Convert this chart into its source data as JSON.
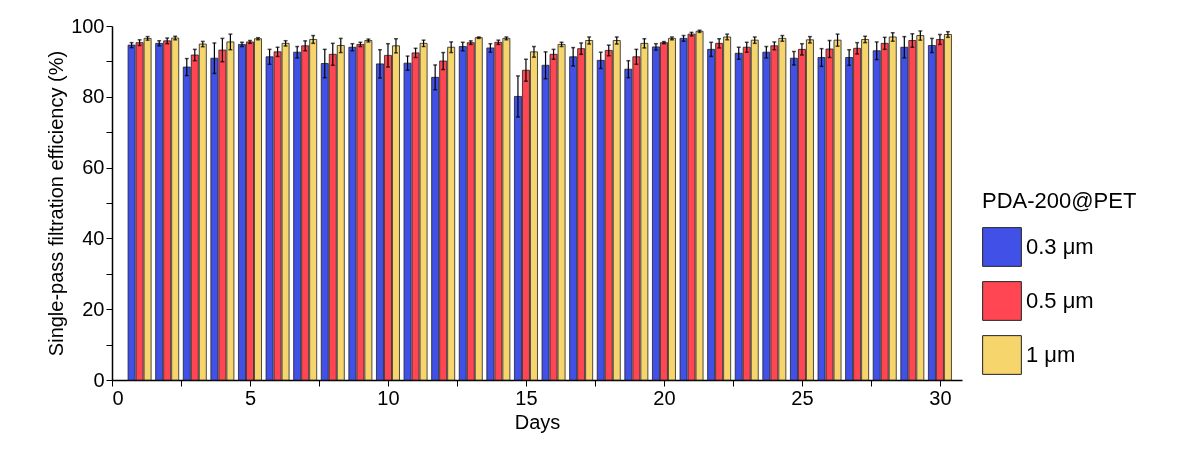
{
  "chart_data": {
    "type": "bar",
    "xlabel": "Days",
    "ylabel": "Single-pass filtration efficiency (%)",
    "legend_title": "PDA-200@PET",
    "legend": "right",
    "x": [
      1,
      2,
      3,
      4,
      5,
      6,
      7,
      8,
      9,
      10,
      11,
      12,
      13,
      14,
      15,
      16,
      17,
      18,
      19,
      20,
      21,
      22,
      23,
      24,
      25,
      26,
      27,
      28,
      29,
      30
    ],
    "xlim": [
      0,
      30.8
    ],
    "xticks": [
      0,
      {
        "value": 2.5,
        "label": null
      },
      5,
      {
        "value": 7.5,
        "label": null
      },
      10,
      {
        "value": 12.5,
        "label": null
      },
      15,
      {
        "value": 17.5,
        "label": null
      },
      20,
      {
        "value": 22.5,
        "label": null
      },
      25,
      {
        "value": 27.5,
        "label": null
      },
      30
    ],
    "ylim": [
      0,
      100
    ],
    "yticks": [
      0,
      {
        "value": 10,
        "label": null
      },
      20,
      {
        "value": 30,
        "label": null
      },
      40,
      {
        "value": 50,
        "label": null
      },
      60,
      {
        "value": 70,
        "label": null
      },
      80,
      {
        "value": 90,
        "label": null
      },
      100
    ],
    "series": [
      {
        "name": "0.3 μm",
        "color": "#4150e6",
        "values": [
          94.6,
          95.1,
          88.4,
          90.9,
          94.8,
          91.3,
          92.6,
          89.4,
          94.0,
          89.3,
          89.5,
          85.5,
          94.2,
          93.8,
          80.1,
          88.9,
          91.3,
          90.3,
          87.8,
          94.1,
          96.5,
          93.4,
          92.3,
          92.6,
          90.9,
          91.1,
          91.1,
          93.0,
          94.0,
          94.5
        ],
        "errors": [
          0.7,
          0.7,
          2.4,
          4.3,
          0.6,
          2.1,
          1.6,
          4.0,
          1.0,
          4.0,
          2.0,
          3.5,
          1.2,
          1.2,
          5.8,
          3.8,
          2.6,
          2.3,
          2.4,
          0.9,
          0.8,
          2.0,
          1.7,
          1.6,
          1.9,
          2.5,
          2.2,
          2.5,
          3.0,
          2.0
        ]
      },
      {
        "name": "0.5 μm",
        "color": "#ff4652",
        "values": [
          95.3,
          95.8,
          91.8,
          93.2,
          95.5,
          92.7,
          94.4,
          92.0,
          94.8,
          91.7,
          92.4,
          90.1,
          95.3,
          95.4,
          87.5,
          92.0,
          93.6,
          93.1,
          91.3,
          95.3,
          97.7,
          95.1,
          94.0,
          94.4,
          93.4,
          93.5,
          93.7,
          95.1,
          95.9,
          96.2
        ],
        "errors": [
          0.8,
          0.8,
          1.6,
          3.3,
          0.4,
          1.3,
          1.4,
          3.1,
          0.6,
          3.3,
          1.3,
          2.4,
          0.5,
          0.6,
          3.1,
          1.4,
          1.6,
          1.5,
          2.1,
          0.3,
          0.5,
          1.3,
          1.4,
          1.1,
          1.6,
          2.4,
          1.6,
          1.7,
          1.9,
          1.4
        ]
      },
      {
        "name": "1  μm",
        "color": "#f6d56c",
        "values": [
          96.5,
          96.6,
          94.9,
          95.5,
          96.4,
          95.1,
          96.2,
          94.5,
          95.9,
          94.4,
          95.1,
          94.0,
          96.7,
          96.5,
          92.7,
          94.8,
          95.9,
          95.9,
          95.1,
          96.5,
          98.5,
          96.9,
          96.0,
          96.5,
          96.1,
          96.0,
          96.2,
          96.9,
          97.3,
          97.6
        ],
        "errors": [
          0.5,
          0.5,
          0.75,
          2.2,
          0.3,
          0.75,
          1.1,
          2.0,
          0.4,
          2.0,
          0.9,
          1.5,
          0.2,
          0.4,
          1.5,
          0.6,
          1.0,
          1.0,
          1.3,
          0.4,
          0.3,
          0.8,
          0.9,
          0.8,
          0.9,
          1.7,
          0.9,
          1.2,
          1.3,
          0.8
        ]
      }
    ]
  }
}
